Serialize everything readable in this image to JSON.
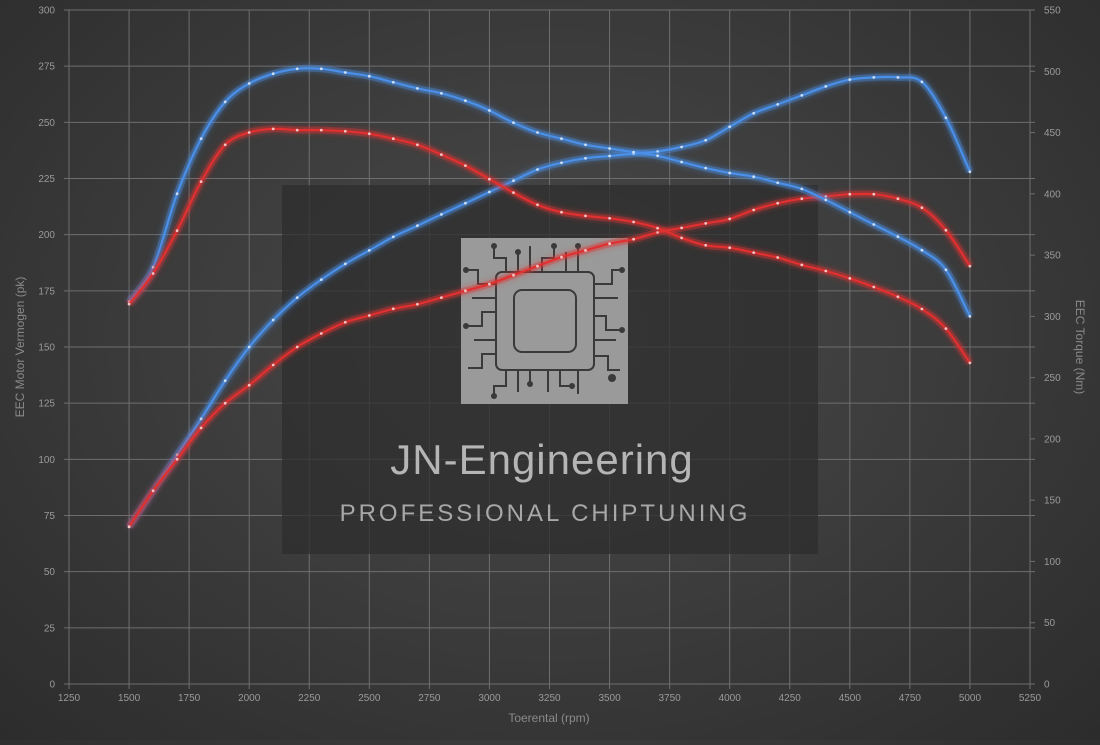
{
  "chart_data": {
    "type": "line",
    "xlabel": "Toerental (rpm)",
    "ylabel_left": "EEC Motor Vermogen (pk)",
    "ylabel_right": "EEC Torque (Nm)",
    "xlim": [
      1250,
      5250
    ],
    "x_ticks": [
      "1250",
      "1500",
      "1750",
      "2000",
      "2250",
      "2500",
      "2750",
      "3000",
      "3250",
      "3500",
      "3750",
      "4000",
      "4250",
      "4500",
      "4750",
      "5000",
      "5250"
    ],
    "ylim_left": [
      0,
      300
    ],
    "y_ticks_left": [
      "0",
      "25",
      "50",
      "75",
      "100",
      "125",
      "150",
      "175",
      "200",
      "225",
      "250",
      "275",
      "300"
    ],
    "ylim_right": [
      0,
      550
    ],
    "y_ticks_right": [
      "0",
      "50",
      "100",
      "150",
      "200",
      "250",
      "300",
      "350",
      "400",
      "450",
      "500",
      "550"
    ],
    "grid": true,
    "series": [
      {
        "axis": "left",
        "color": "#4a90e8",
        "x": [
          1500,
          1600,
          1700,
          1800,
          1900,
          2000,
          2100,
          2200,
          2300,
          2400,
          2500,
          2600,
          2700,
          2800,
          2900,
          3000,
          3100,
          3200,
          3300,
          3400,
          3500,
          3600,
          3700,
          3800,
          3900,
          4000,
          4100,
          4200,
          4300,
          4400,
          4500,
          4600,
          4700,
          4800,
          4900,
          5000
        ],
        "values": [
          70,
          86,
          102,
          118,
          135,
          150,
          162,
          172,
          180,
          187,
          193,
          199,
          204,
          209,
          214,
          219,
          224,
          229,
          232,
          234,
          235,
          236,
          237,
          239,
          242,
          248,
          254,
          258,
          262,
          266,
          269,
          270,
          270,
          268,
          252,
          228
        ]
      },
      {
        "axis": "left",
        "color": "#e03030",
        "x": [
          1500,
          1600,
          1700,
          1800,
          1900,
          2000,
          2100,
          2200,
          2300,
          2400,
          2500,
          2600,
          2700,
          2800,
          2900,
          3000,
          3100,
          3200,
          3300,
          3400,
          3500,
          3600,
          3700,
          3800,
          3900,
          4000,
          4100,
          4200,
          4300,
          4400,
          4500,
          4600,
          4700,
          4800,
          4900,
          5000
        ],
        "values": [
          70,
          86,
          100,
          114,
          125,
          133,
          142,
          150,
          156,
          161,
          164,
          167,
          169,
          172,
          175,
          178,
          182,
          186,
          190,
          193,
          196,
          198,
          201,
          203,
          205,
          207,
          211,
          214,
          216,
          217,
          218,
          218,
          216,
          212,
          202,
          186
        ]
      },
      {
        "axis": "right",
        "color": "#4a90e8",
        "x": [
          1500,
          1600,
          1700,
          1800,
          1900,
          2000,
          2100,
          2200,
          2300,
          2400,
          2500,
          2600,
          2700,
          2800,
          2900,
          3000,
          3100,
          3200,
          3300,
          3400,
          3500,
          3600,
          3700,
          3800,
          3900,
          4000,
          4100,
          4200,
          4300,
          4400,
          4500,
          4600,
          4700,
          4800,
          4900,
          5000
        ],
        "values": [
          312,
          340,
          400,
          445,
          475,
          490,
          498,
          502,
          502,
          499,
          496,
          491,
          486,
          482,
          476,
          468,
          458,
          450,
          445,
          440,
          437,
          434,
          431,
          426,
          421,
          417,
          414,
          409,
          404,
          395,
          385,
          375,
          365,
          354,
          338,
          300
        ]
      },
      {
        "axis": "right",
        "color": "#e03030",
        "x": [
          1500,
          1600,
          1700,
          1800,
          1900,
          2000,
          2100,
          2200,
          2300,
          2400,
          2500,
          2600,
          2700,
          2800,
          2900,
          3000,
          3100,
          3200,
          3300,
          3400,
          3500,
          3600,
          3700,
          3800,
          3900,
          4000,
          4100,
          4200,
          4300,
          4400,
          4500,
          4600,
          4700,
          4800,
          4900,
          5000
        ],
        "values": [
          310,
          335,
          370,
          410,
          440,
          450,
          453,
          452,
          452,
          451,
          449,
          445,
          440,
          432,
          423,
          412,
          401,
          391,
          385,
          382,
          380,
          377,
          372,
          364,
          358,
          356,
          352,
          348,
          342,
          337,
          331,
          324,
          316,
          306,
          290,
          262
        ]
      }
    ]
  },
  "watermark": {
    "title": "JN-Engineering",
    "subtitle": "PROFESSIONAL CHIPTUNING",
    "logo_icon": "circuit-chip-icon"
  }
}
